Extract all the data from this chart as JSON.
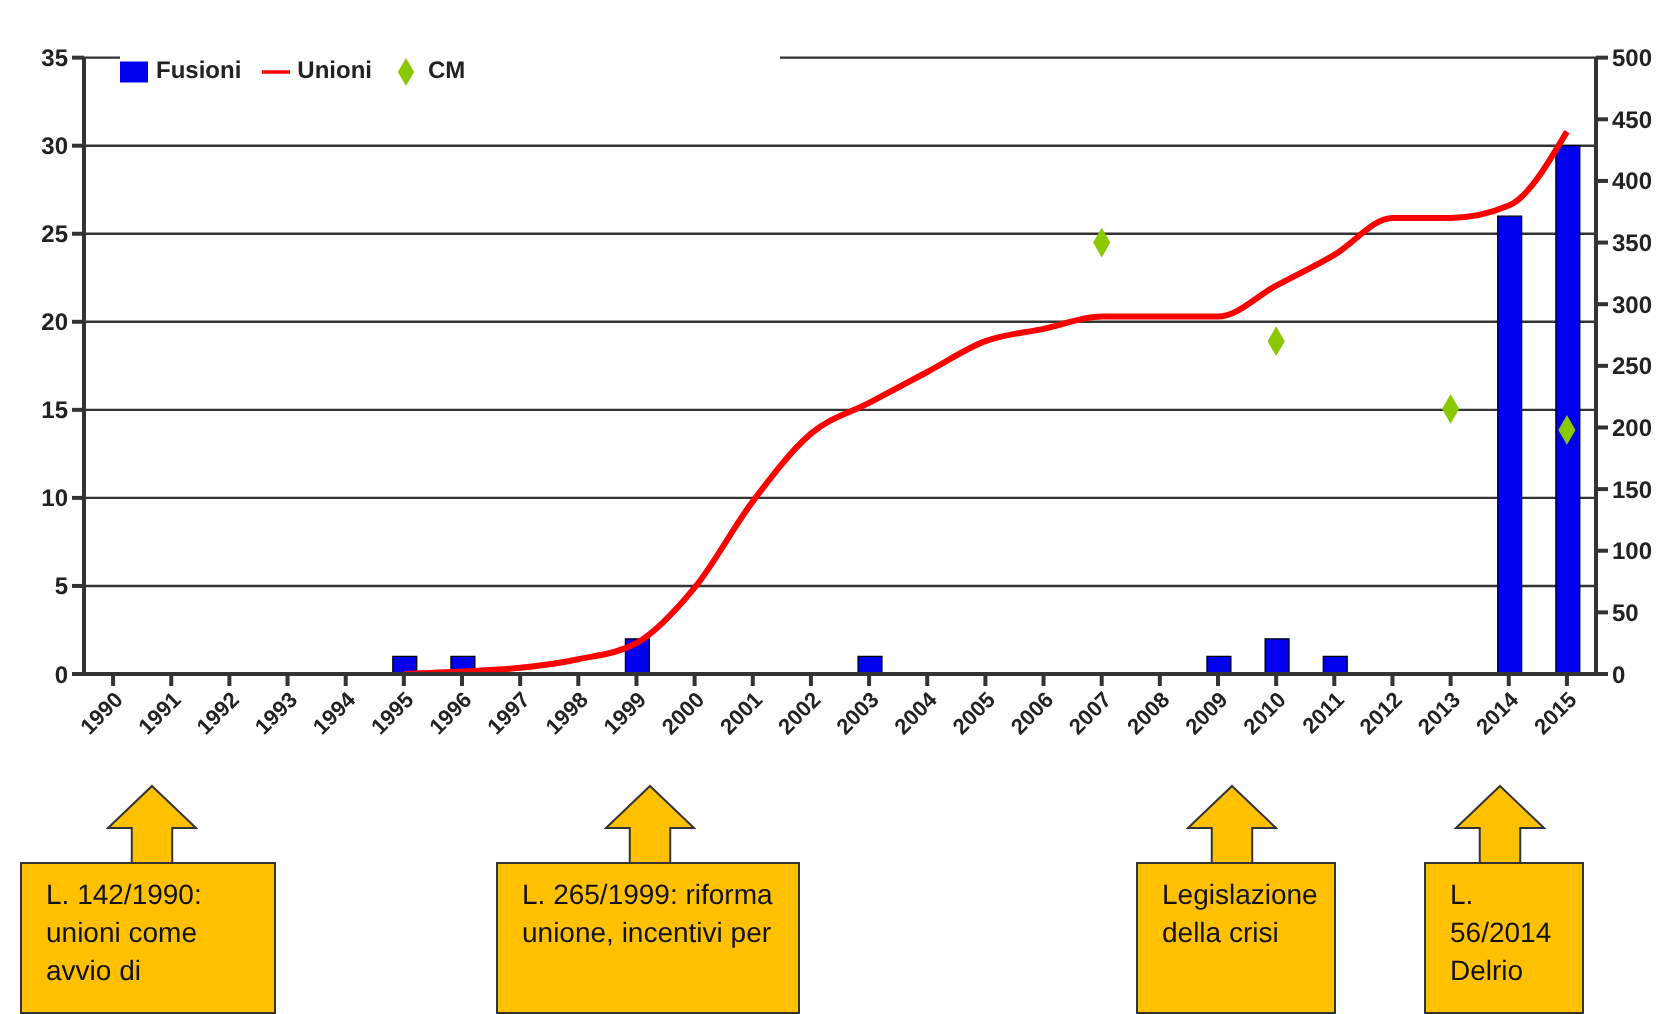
{
  "chart_data": {
    "type": "bar",
    "categories": [
      "1990",
      "1991",
      "1992",
      "1993",
      "1994",
      "1995",
      "1996",
      "1997",
      "1998",
      "1999",
      "2000",
      "2001",
      "2002",
      "2003",
      "2004",
      "2005",
      "2006",
      "2007",
      "2008",
      "2009",
      "2010",
      "2011",
      "2012",
      "2013",
      "2014",
      "2015"
    ],
    "series": [
      {
        "name": "Fusioni",
        "color": "#0000ee",
        "values": [
          null,
          null,
          null,
          null,
          null,
          1,
          1,
          null,
          null,
          2,
          null,
          null,
          null,
          1,
          null,
          null,
          null,
          null,
          null,
          1,
          2,
          1,
          null,
          null,
          26,
          30
        ]
      },
      {
        "name": "Unioni",
        "type": "line",
        "axis": "y2",
        "color": "#ff0000",
        "values": [
          null,
          null,
          null,
          null,
          null,
          0,
          2,
          5,
          12,
          25,
          70,
          140,
          195,
          220,
          245,
          270,
          280,
          290,
          290,
          290,
          315,
          340,
          370,
          370,
          380,
          440
        ]
      },
      {
        "name": "CM",
        "type": "scatter",
        "axis": "y2",
        "color": "#8cc800",
        "marker": "diamond",
        "values": [
          null,
          null,
          null,
          null,
          null,
          null,
          null,
          null,
          null,
          null,
          null,
          null,
          null,
          null,
          null,
          null,
          null,
          350,
          null,
          null,
          270,
          null,
          null,
          215,
          null,
          198
        ]
      }
    ],
    "ylim": [
      0,
      35
    ],
    "yticks": [
      0,
      5,
      10,
      15,
      20,
      25,
      30,
      35
    ],
    "y2lim": [
      0,
      500
    ],
    "y2ticks": [
      0,
      50,
      100,
      150,
      200,
      250,
      300,
      350,
      400,
      450,
      500
    ],
    "grid": "y",
    "legend": "top left",
    "annotations": [
      "L. 142/1990: unioni come avvio di",
      "L. 265/1999: riforma  unione, incentivi per",
      "Legislazione della crisi",
      "L. 56/2014 Delrio"
    ]
  }
}
